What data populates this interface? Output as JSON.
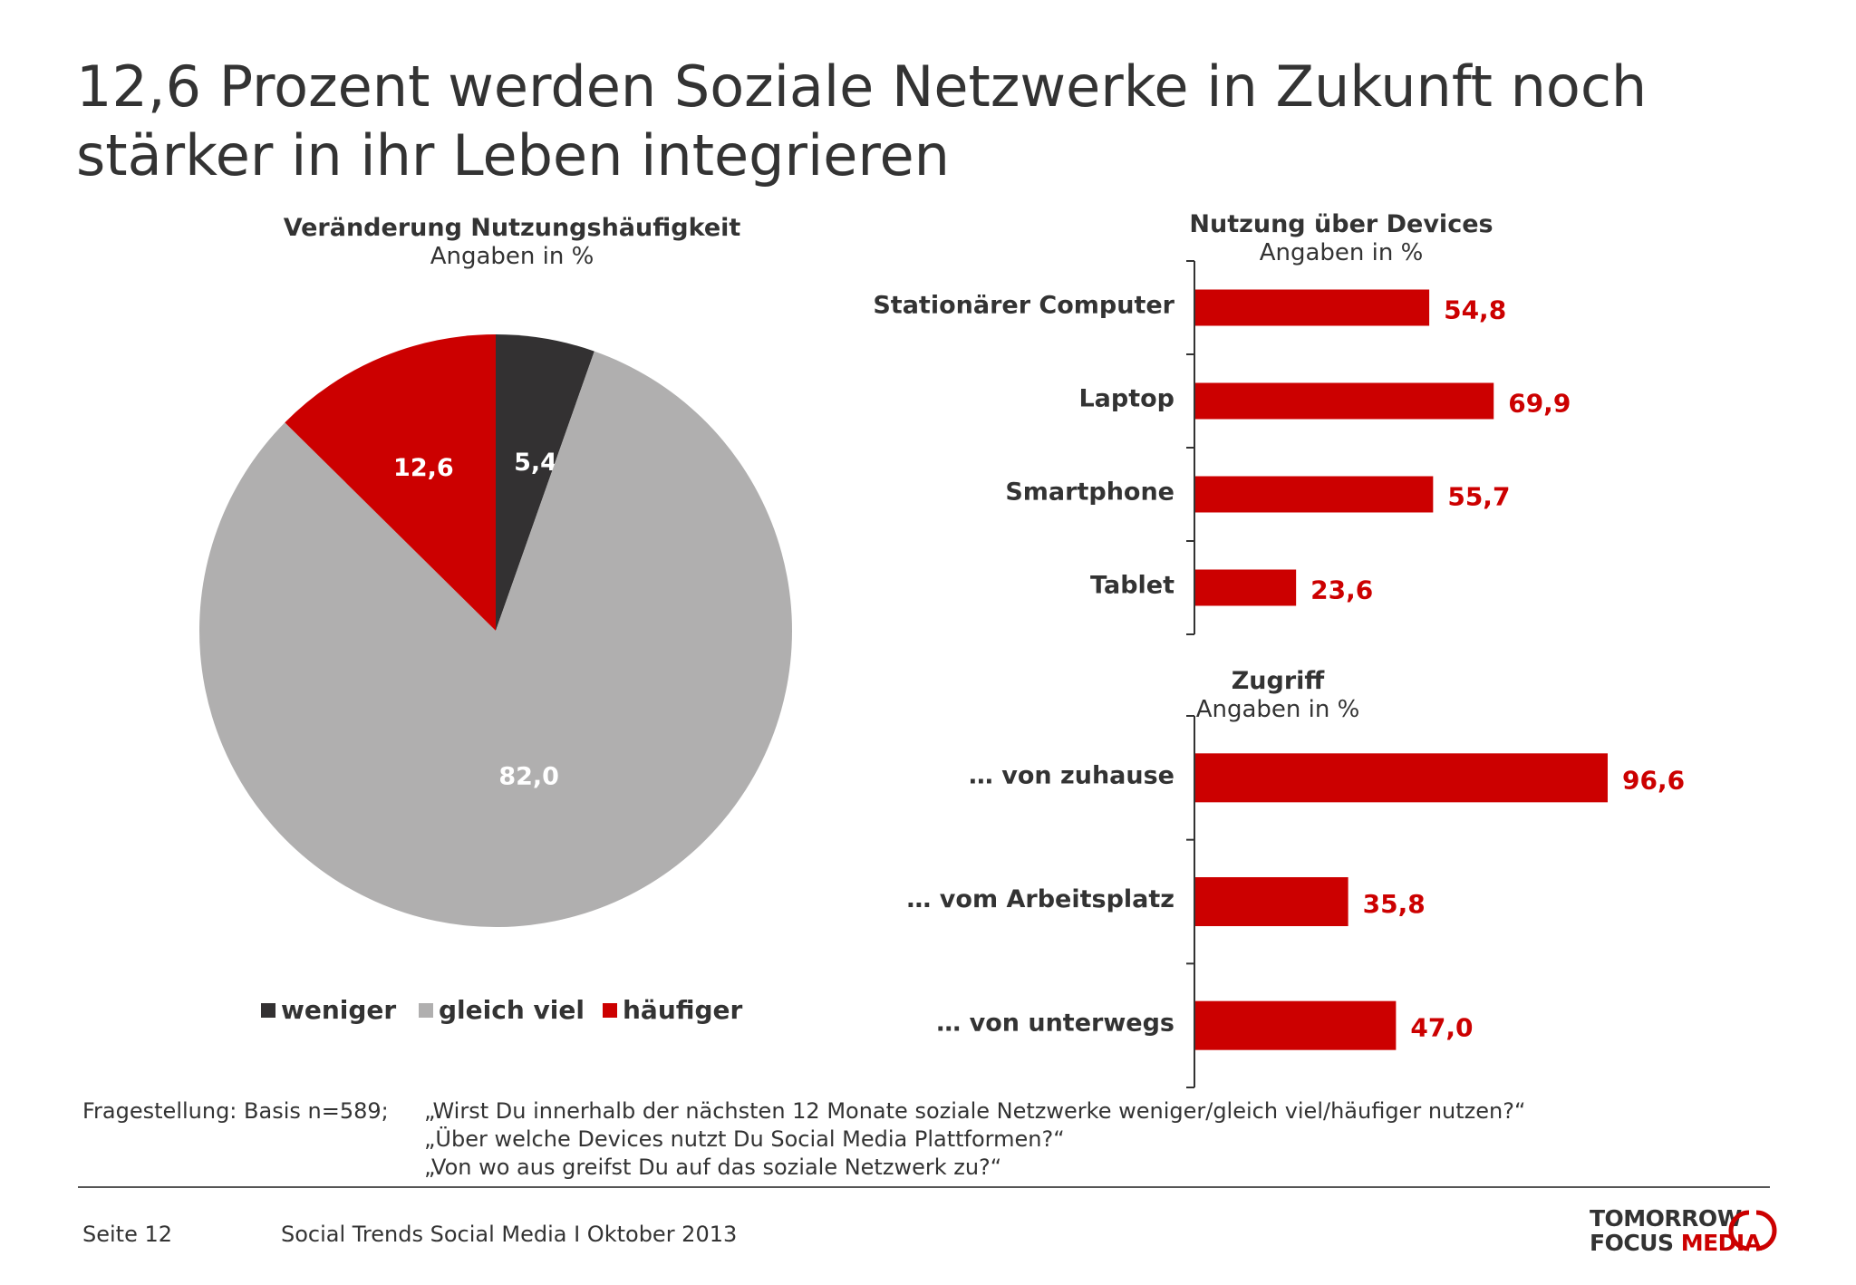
{
  "title": "12,6 Prozent werden Soziale Netzwerke in Zukunft noch stärker in ihr Leben integrieren",
  "colors": {
    "red": "#cc0000",
    "dark": "#333132",
    "gray": "#b0afaf",
    "text": "#333333"
  },
  "chart_data": [
    {
      "type": "pie",
      "title": "Veränderung Nutzungshäufigkeit",
      "subtitle": "Angaben in %",
      "slices": [
        {
          "label": "weniger",
          "value": 5.4,
          "display": "5,4",
          "color": "#333132"
        },
        {
          "label": "gleich viel",
          "value": 82.0,
          "display": "82,0",
          "color": "#b0afaf"
        },
        {
          "label": "häufiger",
          "value": 12.6,
          "display": "12,6",
          "color": "#cc0000"
        }
      ],
      "legend": "bottom"
    },
    {
      "type": "bar",
      "orientation": "horizontal",
      "title": "Nutzung über Devices",
      "subtitle": "Angaben in %",
      "categories": [
        "Stationärer Computer",
        "Laptop",
        "Smartphone",
        "Tablet"
      ],
      "values": [
        54.8,
        69.9,
        55.7,
        23.6
      ],
      "labels": [
        "54,8",
        "69,9",
        "55,7",
        "23,6"
      ],
      "color": "#cc0000"
    },
    {
      "type": "bar",
      "orientation": "horizontal",
      "title": "Zugriff",
      "subtitle": "Angaben in %",
      "categories": [
        "… von zuhause",
        "… vom Arbeitsplatz",
        "… von unterwegs"
      ],
      "values": [
        96.6,
        35.8,
        47.0
      ],
      "labels": [
        "96,6",
        "35,8",
        "47,0"
      ],
      "color": "#cc0000"
    }
  ],
  "footnote": {
    "label": "Fragestellung: Basis n=589;",
    "lines": [
      "„Wirst Du innerhalb der nächsten 12 Monate soziale Netzwerke weniger/gleich viel/häufiger nutzen?“",
      "„Über welche Devices nutzt Du Social Media Plattformen?“",
      "„Von wo aus greifst Du auf das soziale Netzwerk zu?“"
    ]
  },
  "footer": {
    "page": "Seite 12",
    "source": "Social Trends Social Media I Oktober 2013",
    "logo_line1": "TOMORROW",
    "logo_line2a": "FOCUS",
    "logo_line2b": "MEDIA"
  }
}
